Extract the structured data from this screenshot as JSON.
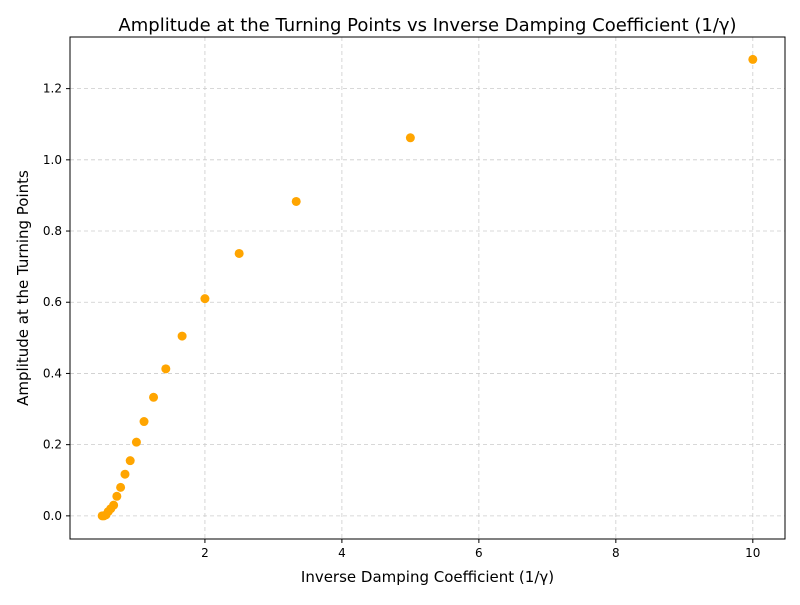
{
  "chart_data": {
    "type": "scatter",
    "title": "Amplitude at the Turning Points vs Inverse Damping Coefficient (1/γ)",
    "xlabel": "Inverse Damping Coefficient (1/γ)",
    "ylabel": "Amplitude at the Turning Points",
    "xlim": [
      0.03,
      10.47
    ],
    "ylim": [
      -0.065,
      1.345
    ],
    "xticks": [
      2,
      4,
      6,
      8,
      10
    ],
    "xtick_labels": [
      "2",
      "4",
      "6",
      "8",
      "10"
    ],
    "yticks": [
      0.0,
      0.2,
      0.4,
      0.6,
      0.8,
      1.0,
      1.2
    ],
    "ytick_labels": [
      "0.0",
      "0.2",
      "0.4",
      "0.6",
      "0.8",
      "1.0",
      "1.2"
    ],
    "grid": true,
    "color": "#ffa500",
    "x": [
      0.5,
      0.526,
      0.556,
      0.588,
      0.625,
      0.667,
      0.714,
      0.769,
      0.833,
      0.909,
      1.0,
      1.111,
      1.25,
      1.429,
      1.667,
      2.0,
      2.5,
      3.333,
      5.0,
      10.0
    ],
    "y": [
      0.0,
      0.0,
      0.003,
      0.012,
      0.02,
      0.03,
      0.055,
      0.08,
      0.117,
      0.155,
      0.207,
      0.265,
      0.333,
      0.413,
      0.505,
      0.61,
      0.737,
      0.883,
      1.062,
      1.282
    ]
  }
}
